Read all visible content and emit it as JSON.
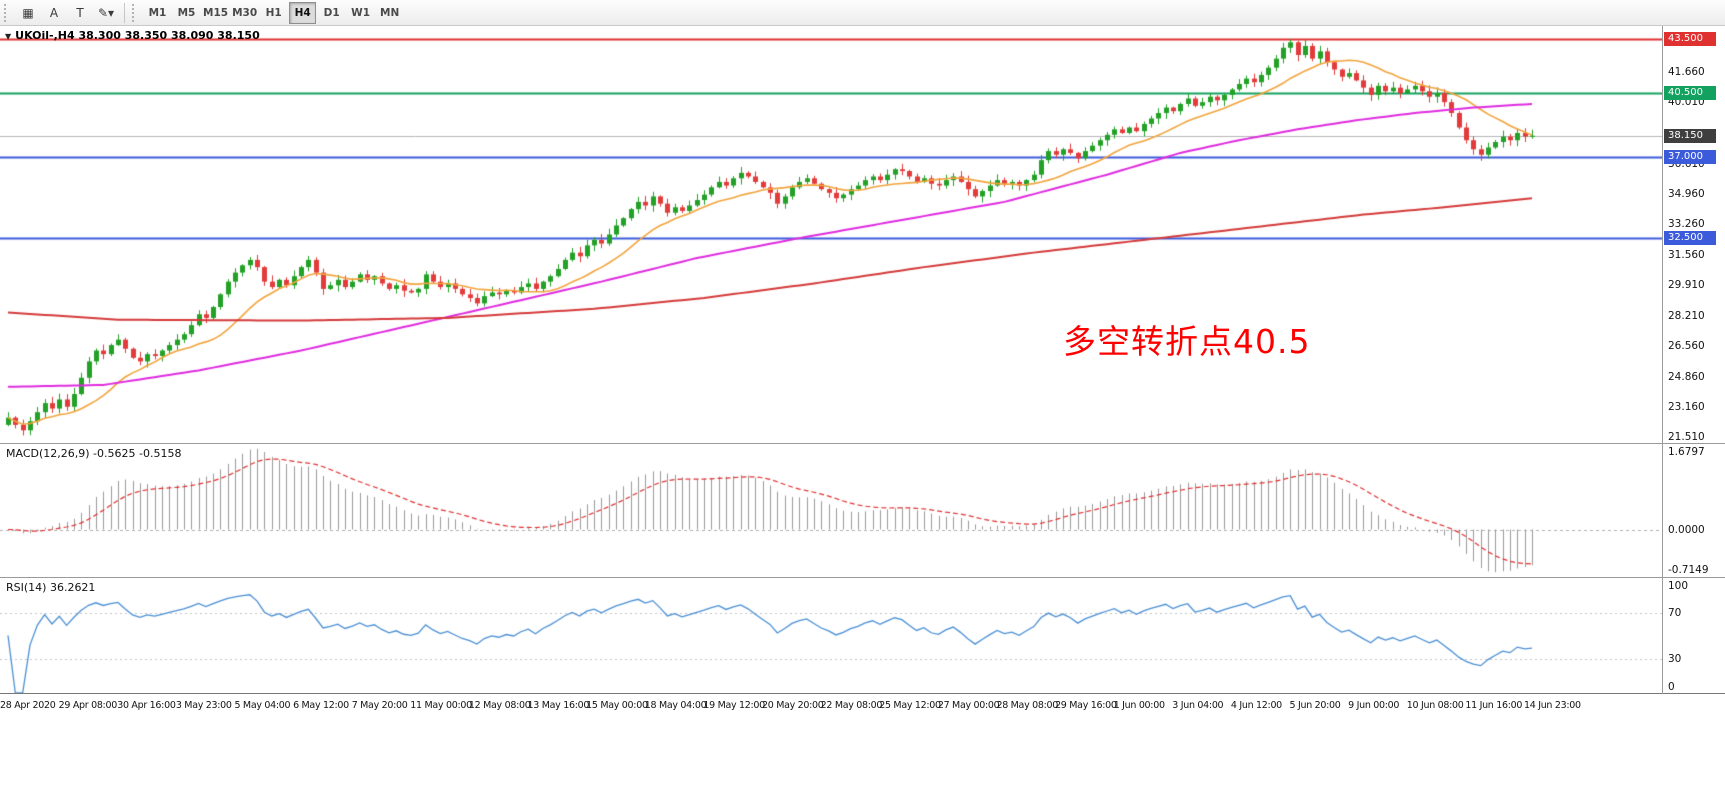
{
  "toolbar": {
    "tools": [
      {
        "name": "chart-grid-icon",
        "glyph": "▦"
      },
      {
        "name": "annotation-a-tool",
        "glyph": "A"
      },
      {
        "name": "text-label-tool",
        "glyph": "T"
      },
      {
        "name": "drawing-tools-dropdown",
        "glyph": "✎▾"
      }
    ],
    "timeframes": [
      {
        "label": "M1",
        "active": false
      },
      {
        "label": "M5",
        "active": false
      },
      {
        "label": "M15",
        "active": false
      },
      {
        "label": "M30",
        "active": false
      },
      {
        "label": "H1",
        "active": false
      },
      {
        "label": "H4",
        "active": true
      },
      {
        "label": "D1",
        "active": false
      },
      {
        "label": "W1",
        "active": false
      },
      {
        "label": "MN",
        "active": false
      }
    ]
  },
  "header": {
    "collapse_glyph": "▼",
    "symbol_line": "UKOil-,H4 38.300 38.350 38.090 38.150"
  },
  "chart_data": [
    {
      "type": "candlestick",
      "symbol": "UKOil-",
      "timeframe": "H4",
      "header": "UKOil-,H4 38.300 38.350 38.090 38.150",
      "display_ohlc": {
        "open": "38.300",
        "high": "38.350",
        "low": "38.090",
        "close": "38.150"
      },
      "ylim": [
        21.2,
        44.2
      ],
      "y_ticks": [
        "41.660",
        "40.010",
        "36.610",
        "34.960",
        "33.260",
        "31.560",
        "29.910",
        "28.210",
        "26.560",
        "24.860",
        "23.160",
        "21.510"
      ],
      "x_labels": [
        "28 Apr 2020",
        "29 Apr 08:00",
        "30 Apr 16:00",
        "3 May 23:00",
        "5 May 04:00",
        "6 May 12:00",
        "7 May 20:00",
        "11 May 00:00",
        "12 May 08:00",
        "13 May 16:00",
        "15 May 00:00",
        "18 May 04:00",
        "19 May 12:00",
        "20 May 20:00",
        "22 May 08:00",
        "25 May 12:00",
        "27 May 00:00",
        "28 May 08:00",
        "29 May 16:00",
        "1 Jun 00:00",
        "3 Jun 04:00",
        "4 Jun 12:00",
        "5 Jun 20:00",
        "9 Jun 00:00",
        "10 Jun 08:00",
        "11 Jun 16:00",
        "14 Jun 23:00"
      ],
      "candles_per_label": 8,
      "closes": [
        22.6,
        22.2,
        21.9,
        22.4,
        22.9,
        23.4,
        23.1,
        23.6,
        23.2,
        23.9,
        24.8,
        25.7,
        26.3,
        26.1,
        26.6,
        26.9,
        26.4,
        25.9,
        25.7,
        26.1,
        26.0,
        26.3,
        26.6,
        26.9,
        27.2,
        27.7,
        28.3,
        28.1,
        28.7,
        29.4,
        30.1,
        30.6,
        31.0,
        31.3,
        30.9,
        30.1,
        29.8,
        30.2,
        29.9,
        30.4,
        30.9,
        31.3,
        30.6,
        29.7,
        29.9,
        30.2,
        29.8,
        30.1,
        30.5,
        30.2,
        30.4,
        30.0,
        29.7,
        29.9,
        29.6,
        29.5,
        29.7,
        30.5,
        30.1,
        29.8,
        30.0,
        29.7,
        29.4,
        29.2,
        28.9,
        29.3,
        29.5,
        29.4,
        29.6,
        29.5,
        29.8,
        30.0,
        29.7,
        30.1,
        30.4,
        30.8,
        31.3,
        31.7,
        31.5,
        32.1,
        32.4,
        32.2,
        32.7,
        33.2,
        33.6,
        34.1,
        34.5,
        34.3,
        34.8,
        34.4,
        33.9,
        34.2,
        34.0,
        34.3,
        34.6,
        34.9,
        35.3,
        35.6,
        35.4,
        35.8,
        36.1,
        35.9,
        35.6,
        35.3,
        35.0,
        34.4,
        34.8,
        35.3,
        35.6,
        35.8,
        35.5,
        35.2,
        35.0,
        34.7,
        34.9,
        35.2,
        35.4,
        35.7,
        35.9,
        35.7,
        36.0,
        36.3,
        36.2,
        35.9,
        35.6,
        35.8,
        35.5,
        35.4,
        35.7,
        35.9,
        35.6,
        35.2,
        34.8,
        35.1,
        35.4,
        35.7,
        35.5,
        35.6,
        35.4,
        35.7,
        36.0,
        36.8,
        37.3,
        37.1,
        37.4,
        37.2,
        36.9,
        37.3,
        37.6,
        37.9,
        38.2,
        38.5,
        38.3,
        38.6,
        38.4,
        38.8,
        39.1,
        39.4,
        39.7,
        39.5,
        39.9,
        40.2,
        39.8,
        40.0,
        40.3,
        40.1,
        40.4,
        40.7,
        41.0,
        41.3,
        41.1,
        41.5,
        41.9,
        42.4,
        43.0,
        43.3,
        42.6,
        43.1,
        42.4,
        42.8,
        42.2,
        41.8,
        41.4,
        41.6,
        41.2,
        40.8,
        40.4,
        40.9,
        40.6,
        40.8,
        40.5,
        40.7,
        40.9,
        40.6,
        40.3,
        40.5,
        40.0,
        39.4,
        38.6,
        37.9,
        37.4,
        37.1,
        37.5,
        37.8,
        38.1,
        37.9,
        38.3,
        38.1,
        38.15
      ],
      "hlines": [
        {
          "price": 43.5,
          "label": "43.500",
          "color": "#e03131"
        },
        {
          "price": 40.5,
          "label": "40.500",
          "color": "#12a15e"
        },
        {
          "price": 37.0,
          "label": "37.000",
          "color": "#3b5bdb"
        },
        {
          "price": 32.5,
          "label": "32.500",
          "color": "#3b5bdb"
        }
      ],
      "last_price": {
        "value": 38.15,
        "label": "38.150",
        "badge_color": "#3f3f3f"
      },
      "annotation": {
        "text": "多空转折点40.5",
        "color": "#ff0000"
      },
      "series": [
        {
          "name": "ma-fast",
          "kind": "sma",
          "period": 13,
          "color": "#f2a33c"
        },
        {
          "name": "ma-mid",
          "kind": "anchors",
          "color": "#df2bdf",
          "points": [
            [
              0,
              24.3
            ],
            [
              13,
              24.4
            ],
            [
              26,
              25.2
            ],
            [
              40,
              26.3
            ],
            [
              53,
              27.5
            ],
            [
              67,
              28.8
            ],
            [
              81,
              30.1
            ],
            [
              94,
              31.4
            ],
            [
              108,
              32.5
            ],
            [
              122,
              33.5
            ],
            [
              136,
              34.5
            ],
            [
              150,
              36.0
            ],
            [
              160,
              37.2
            ],
            [
              168,
              37.9
            ],
            [
              176,
              38.5
            ],
            [
              184,
              39.0
            ],
            [
              192,
              39.4
            ],
            [
              200,
              39.7
            ],
            [
              208,
              39.9
            ]
          ]
        },
        {
          "name": "ma-slow",
          "kind": "anchors",
          "color": "#d43a3a",
          "points": [
            [
              0,
              28.4
            ],
            [
              15,
              28.0
            ],
            [
              40,
              27.95
            ],
            [
              60,
              28.1
            ],
            [
              80,
              28.6
            ],
            [
              95,
              29.2
            ],
            [
              110,
              30.0
            ],
            [
              125,
              30.9
            ],
            [
              140,
              31.7
            ],
            [
              155,
              32.4
            ],
            [
              170,
              33.1
            ],
            [
              185,
              33.8
            ],
            [
              196,
              34.2
            ],
            [
              208,
              34.7
            ]
          ]
        }
      ],
      "colors": {
        "up": "#23a127",
        "down": "#e23b3b"
      }
    },
    {
      "type": "macd",
      "label": "MACD(12,26,9) -0.5625 -0.5158",
      "fast": 12,
      "slow": 26,
      "signal": 9,
      "macd_value": "-0.5625",
      "signal_value": "-0.5158",
      "ylim": [
        -0.7149,
        1.6797
      ],
      "y_ticks": [
        "1.6797",
        "0.0000",
        "-0.7149"
      ],
      "colors": {
        "hist": "#9a9a9a",
        "signal": "#e03131"
      }
    },
    {
      "type": "rsi",
      "label": "RSI(14) 36.2621",
      "period": 14,
      "value": "36.2621",
      "levels": [
        70,
        30
      ],
      "ylim": [
        0,
        100
      ],
      "y_ticks": [
        "100",
        "70",
        "30",
        "0"
      ],
      "colors": {
        "line": "#4a8fd4"
      }
    }
  ]
}
